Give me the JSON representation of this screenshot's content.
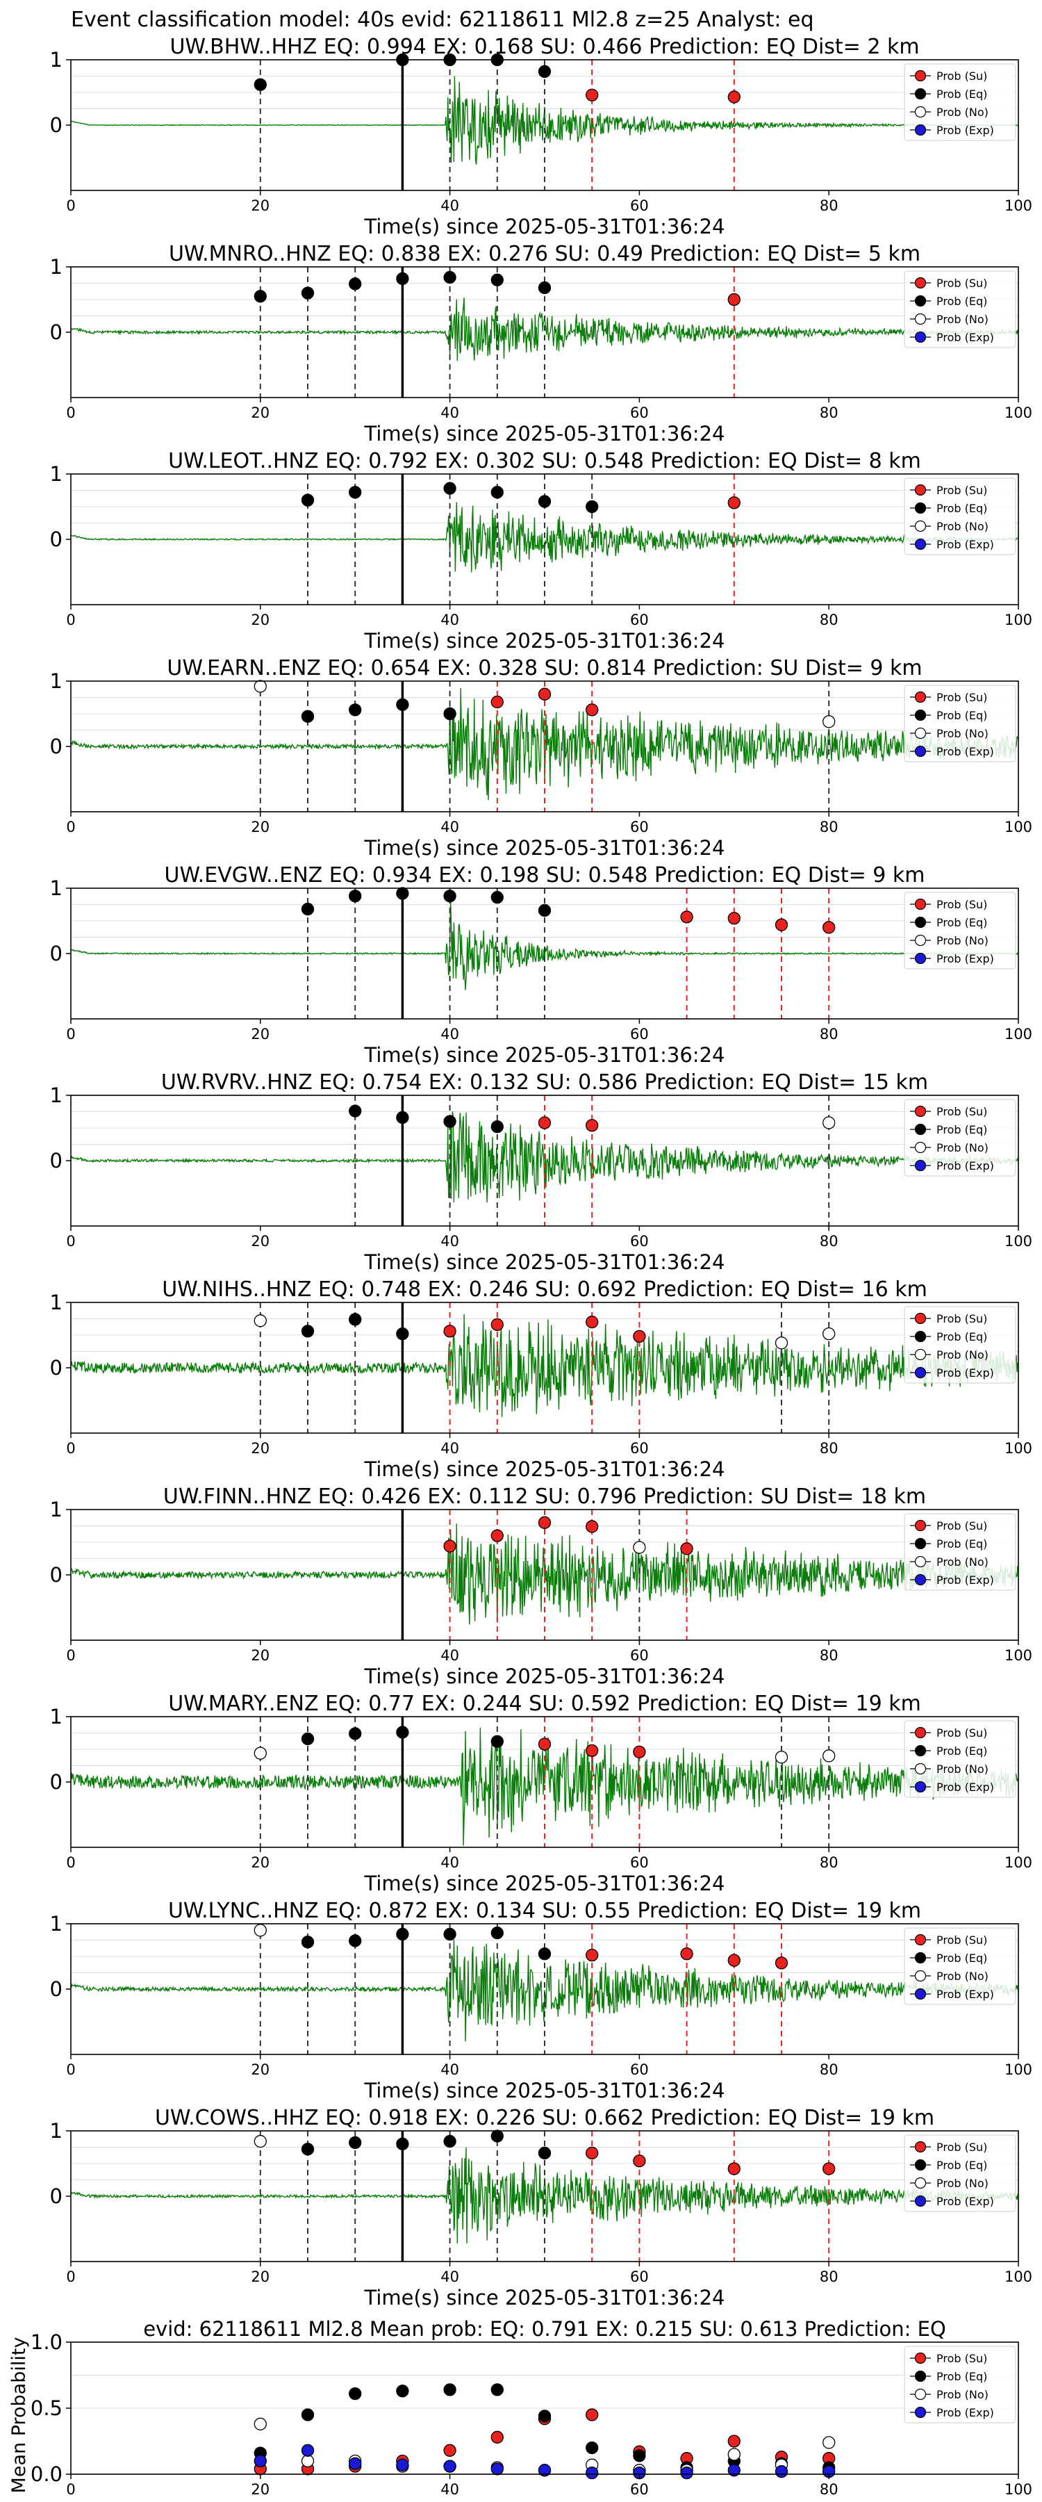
{
  "title": "Event classification model: 40s evid: 62118611 Ml2.8 z=25 Analyst: eq",
  "colors": {
    "su": "#e8231f",
    "eq": "#000000",
    "no": "#ffffff",
    "exp": "#1a1ad6",
    "trace": "#0a7d0a",
    "pick": "#000000",
    "su_line": "#e8231f"
  },
  "legend": [
    "Prob (Su)",
    "Prob (Eq)",
    "Prob (No)",
    "Prob (Exp)"
  ],
  "chart_data": [
    {
      "type": "line",
      "title": "UW.BHW..HHZ   EQ: 0.994  EX: 0.168  SU: 0.466   Prediction: EQ    Dist= 2 km",
      "xlabel": "Time(s) since 2025-05-31T01:36:24",
      "xlim": [
        0,
        100
      ],
      "ylim": [
        -1,
        1
      ],
      "xticks": [
        "0",
        "20",
        "40",
        "60",
        "80",
        "100"
      ],
      "yticks": [
        "1",
        "0"
      ],
      "onset": 39.5,
      "amp": 0.9,
      "dur": 12,
      "noise": 0.005,
      "series": {
        "eq": [
          [
            20,
            0.62
          ],
          [
            35,
            1.0
          ],
          [
            40,
            1.0
          ],
          [
            45,
            1.0
          ],
          [
            50,
            0.82
          ]
        ],
        "su": [
          [
            55,
            0.46
          ],
          [
            70,
            0.43
          ]
        ],
        "no": [],
        "exp": []
      }
    },
    {
      "type": "line",
      "title": "UW.MNRO..HNZ   EQ: 0.838  EX: 0.276  SU: 0.49   Prediction: EQ    Dist= 5 km",
      "xlabel": "Time(s) since 2025-05-31T01:36:24",
      "xlim": [
        0,
        100
      ],
      "ylim": [
        -1,
        1
      ],
      "xticks": [
        "0",
        "20",
        "40",
        "60",
        "80",
        "100"
      ],
      "yticks": [
        "1",
        "0"
      ],
      "onset": 39.5,
      "amp": 0.65,
      "dur": 18,
      "noise": 0.02,
      "series": {
        "eq": [
          [
            20,
            0.55
          ],
          [
            25,
            0.6
          ],
          [
            30,
            0.74
          ],
          [
            35,
            0.82
          ],
          [
            40,
            0.84
          ],
          [
            45,
            0.8
          ],
          [
            50,
            0.68
          ]
        ],
        "su": [
          [
            70,
            0.5
          ]
        ],
        "no": [],
        "exp": []
      }
    },
    {
      "type": "line",
      "title": "UW.LEOT..HNZ   EQ: 0.792  EX: 0.302  SU: 0.548   Prediction: EQ    Dist= 8 km",
      "xlabel": "Time(s) since 2025-05-31T01:36:24",
      "xlim": [
        0,
        100
      ],
      "ylim": [
        -1,
        1
      ],
      "xticks": [
        "0",
        "20",
        "40",
        "60",
        "80",
        "100"
      ],
      "yticks": [
        "1",
        "0"
      ],
      "onset": 39.5,
      "amp": 0.75,
      "dur": 18,
      "noise": 0.01,
      "series": {
        "eq": [
          [
            25,
            0.6
          ],
          [
            30,
            0.72
          ],
          [
            40,
            0.78
          ],
          [
            45,
            0.72
          ],
          [
            50,
            0.58
          ],
          [
            55,
            0.5
          ]
        ],
        "su": [
          [
            70,
            0.56
          ]
        ],
        "no": [],
        "exp": []
      }
    },
    {
      "type": "line",
      "title": "UW.EARN..ENZ   EQ: 0.654  EX: 0.328  SU: 0.814   Prediction: SU    Dist= 9 km",
      "xlabel": "Time(s) since 2025-05-31T01:36:24",
      "xlim": [
        0,
        100
      ],
      "ylim": [
        -1,
        1
      ],
      "xticks": [
        "0",
        "20",
        "40",
        "60",
        "80",
        "100"
      ],
      "yticks": [
        "1",
        "0"
      ],
      "onset": 39.5,
      "amp": 1.0,
      "dur": 35,
      "noise": 0.03,
      "series": {
        "eq": [
          [
            25,
            0.46
          ],
          [
            30,
            0.56
          ],
          [
            35,
            0.64
          ],
          [
            40,
            0.5
          ]
        ],
        "su": [
          [
            45,
            0.68
          ],
          [
            50,
            0.8
          ],
          [
            55,
            0.56
          ]
        ],
        "no": [
          [
            20,
            0.92
          ],
          [
            80,
            0.38
          ]
        ],
        "exp": []
      }
    },
    {
      "type": "line",
      "title": "UW.EVGW..ENZ   EQ: 0.934  EX: 0.198  SU: 0.548   Prediction: EQ    Dist= 9 km",
      "xlabel": "Time(s) since 2025-05-31T01:36:24",
      "xlim": [
        0,
        100
      ],
      "ylim": [
        -1,
        1
      ],
      "xticks": [
        "0",
        "20",
        "40",
        "60",
        "80",
        "100"
      ],
      "yticks": [
        "1",
        "0"
      ],
      "onset": 39.5,
      "amp": 0.9,
      "dur": 6,
      "noise": 0.01,
      "series": {
        "eq": [
          [
            25,
            0.68
          ],
          [
            30,
            0.88
          ],
          [
            35,
            0.92
          ],
          [
            40,
            0.88
          ],
          [
            45,
            0.86
          ],
          [
            50,
            0.66
          ]
        ],
        "su": [
          [
            65,
            0.56
          ],
          [
            70,
            0.54
          ],
          [
            75,
            0.44
          ],
          [
            80,
            0.4
          ]
        ],
        "no": [],
        "exp": []
      }
    },
    {
      "type": "line",
      "title": "UW.RVRV..HNZ   EQ: 0.754  EX: 0.132  SU: 0.586   Prediction: EQ    Dist= 15 km",
      "xlabel": "Time(s) since 2025-05-31T01:36:24",
      "xlim": [
        0,
        100
      ],
      "ylim": [
        -1,
        1
      ],
      "xticks": [
        "0",
        "20",
        "40",
        "60",
        "80",
        "100"
      ],
      "yticks": [
        "1",
        "0"
      ],
      "onset": 39.5,
      "amp": 0.95,
      "dur": 20,
      "noise": 0.02,
      "series": {
        "eq": [
          [
            30,
            0.76
          ],
          [
            35,
            0.66
          ],
          [
            40,
            0.6
          ],
          [
            45,
            0.52
          ]
        ],
        "su": [
          [
            50,
            0.58
          ],
          [
            55,
            0.54
          ]
        ],
        "no": [
          [
            80,
            0.58
          ]
        ],
        "exp": []
      }
    },
    {
      "type": "line",
      "title": "UW.NIHS..HNZ   EQ: 0.748  EX: 0.246  SU: 0.692   Prediction: EQ    Dist= 16 km",
      "xlabel": "Time(s) since 2025-05-31T01:36:24",
      "xlim": [
        0,
        100
      ],
      "ylim": [
        -1,
        1
      ],
      "xticks": [
        "0",
        "20",
        "40",
        "60",
        "80",
        "100"
      ],
      "yticks": [
        "1",
        "0"
      ],
      "onset": 39.5,
      "amp": 1.0,
      "dur": 45,
      "noise": 0.08,
      "series": {
        "eq": [
          [
            25,
            0.56
          ],
          [
            30,
            0.74
          ],
          [
            35,
            0.52
          ]
        ],
        "su": [
          [
            40,
            0.56
          ],
          [
            45,
            0.66
          ],
          [
            55,
            0.7
          ],
          [
            60,
            0.48
          ]
        ],
        "no": [
          [
            20,
            0.72
          ],
          [
            75,
            0.38
          ],
          [
            80,
            0.52
          ]
        ],
        "exp": []
      }
    },
    {
      "type": "line",
      "title": "UW.FINN..HNZ   EQ: 0.426  EX: 0.112  SU: 0.796   Prediction: SU    Dist= 18 km",
      "xlabel": "Time(s) since 2025-05-31T01:36:24",
      "xlim": [
        0,
        100
      ],
      "ylim": [
        -1,
        1
      ],
      "xticks": [
        "0",
        "20",
        "40",
        "60",
        "80",
        "100"
      ],
      "yticks": [
        "1",
        "0"
      ],
      "onset": 39.5,
      "amp": 0.95,
      "dur": 40,
      "noise": 0.05,
      "series": {
        "eq": [],
        "su": [
          [
            40,
            0.44
          ],
          [
            45,
            0.6
          ],
          [
            50,
            0.8
          ],
          [
            55,
            0.74
          ],
          [
            65,
            0.4
          ]
        ],
        "no": [
          [
            60,
            0.42
          ]
        ],
        "exp": []
      }
    },
    {
      "type": "line",
      "title": "UW.MARY..ENZ   EQ: 0.77  EX: 0.244  SU: 0.592   Prediction: EQ    Dist= 19 km",
      "xlabel": "Time(s) since 2025-05-31T01:36:24",
      "xlim": [
        0,
        100
      ],
      "ylim": [
        -1,
        1
      ],
      "xticks": [
        "0",
        "20",
        "40",
        "60",
        "80",
        "100"
      ],
      "yticks": [
        "1",
        "0"
      ],
      "onset": 41,
      "amp": 1.0,
      "dur": 35,
      "noise": 0.1,
      "series": {
        "eq": [
          [
            25,
            0.66
          ],
          [
            30,
            0.74
          ],
          [
            35,
            0.76
          ],
          [
            45,
            0.62
          ]
        ],
        "su": [
          [
            50,
            0.58
          ],
          [
            55,
            0.48
          ],
          [
            60,
            0.46
          ]
        ],
        "no": [
          [
            20,
            0.44
          ],
          [
            75,
            0.38
          ],
          [
            80,
            0.4
          ]
        ],
        "exp": []
      }
    },
    {
      "type": "line",
      "title": "UW.LYNC..HNZ   EQ: 0.872  EX: 0.134  SU: 0.55   Prediction: EQ    Dist= 19 km",
      "xlabel": "Time(s) since 2025-05-31T01:36:24",
      "xlim": [
        0,
        100
      ],
      "ylim": [
        -1,
        1
      ],
      "xticks": [
        "0",
        "20",
        "40",
        "60",
        "80",
        "100"
      ],
      "yticks": [
        "1",
        "0"
      ],
      "onset": 39.5,
      "amp": 0.95,
      "dur": 25,
      "noise": 0.03,
      "series": {
        "eq": [
          [
            25,
            0.72
          ],
          [
            30,
            0.74
          ],
          [
            35,
            0.84
          ],
          [
            40,
            0.84
          ],
          [
            45,
            0.86
          ],
          [
            50,
            0.54
          ]
        ],
        "su": [
          [
            55,
            0.52
          ],
          [
            65,
            0.54
          ],
          [
            70,
            0.44
          ],
          [
            75,
            0.4
          ]
        ],
        "no": [
          [
            20,
            0.9
          ]
        ],
        "exp": []
      }
    },
    {
      "type": "line",
      "title": "UW.COWS..HHZ   EQ: 0.918  EX: 0.226  SU: 0.662   Prediction: EQ    Dist= 19 km",
      "xlabel": "Time(s) since 2025-05-31T01:36:24",
      "xlim": [
        0,
        100
      ],
      "ylim": [
        -1,
        1
      ],
      "xticks": [
        "0",
        "20",
        "40",
        "60",
        "80",
        "100"
      ],
      "yticks": [
        "1",
        "0"
      ],
      "onset": 39.5,
      "amp": 0.85,
      "dur": 25,
      "noise": 0.02,
      "series": {
        "eq": [
          [
            25,
            0.72
          ],
          [
            30,
            0.82
          ],
          [
            35,
            0.8
          ],
          [
            40,
            0.84
          ],
          [
            45,
            0.92
          ],
          [
            50,
            0.66
          ]
        ],
        "su": [
          [
            55,
            0.66
          ],
          [
            60,
            0.54
          ],
          [
            70,
            0.42
          ],
          [
            80,
            0.42
          ]
        ],
        "no": [
          [
            20,
            0.84
          ]
        ],
        "exp": []
      }
    },
    {
      "type": "scatter",
      "title": "evid: 62118611  Ml2.8   Mean prob:   EQ: 0.791  EX: 0.215  SU: 0.613   Prediction: EQ",
      "ylabel": "Mean Probability",
      "xlim": [
        0,
        100
      ],
      "ylim": [
        0,
        1
      ],
      "xticks": [
        "0",
        "20",
        "40",
        "60",
        "80",
        "100"
      ],
      "yticks": [
        "1.0",
        "0.5",
        "0.0"
      ],
      "series": {
        "su": [
          [
            20,
            0.04
          ],
          [
            25,
            0.04
          ],
          [
            30,
            0.06
          ],
          [
            35,
            0.1
          ],
          [
            40,
            0.18
          ],
          [
            45,
            0.28
          ],
          [
            50,
            0.42
          ],
          [
            55,
            0.45
          ],
          [
            60,
            0.17
          ],
          [
            65,
            0.12
          ],
          [
            70,
            0.25
          ],
          [
            75,
            0.13
          ],
          [
            80,
            0.12
          ]
        ],
        "eq": [
          [
            20,
            0.16
          ],
          [
            25,
            0.45
          ],
          [
            30,
            0.61
          ],
          [
            35,
            0.63
          ],
          [
            40,
            0.64
          ],
          [
            45,
            0.64
          ],
          [
            50,
            0.44
          ],
          [
            55,
            0.2
          ],
          [
            60,
            0.14
          ],
          [
            65,
            0.05
          ],
          [
            70,
            0.1
          ],
          [
            75,
            0.08
          ],
          [
            80,
            0.05
          ]
        ],
        "no": [
          [
            20,
            0.38
          ],
          [
            25,
            0.1
          ],
          [
            30,
            0.1
          ],
          [
            35,
            0.06
          ],
          [
            40,
            0.06
          ],
          [
            45,
            0.05
          ],
          [
            50,
            0.03
          ],
          [
            55,
            0.07
          ],
          [
            60,
            0.03
          ],
          [
            65,
            0.03
          ],
          [
            70,
            0.15
          ],
          [
            75,
            0.07
          ],
          [
            80,
            0.24
          ]
        ],
        "exp": [
          [
            20,
            0.1
          ],
          [
            25,
            0.18
          ],
          [
            30,
            0.08
          ],
          [
            35,
            0.07
          ],
          [
            40,
            0.06
          ],
          [
            45,
            0.04
          ],
          [
            50,
            0.03
          ],
          [
            55,
            0.01
          ],
          [
            60,
            0.01
          ],
          [
            65,
            0.01
          ],
          [
            70,
            0.03
          ],
          [
            75,
            0.02
          ],
          [
            80,
            0.02
          ]
        ]
      }
    }
  ]
}
